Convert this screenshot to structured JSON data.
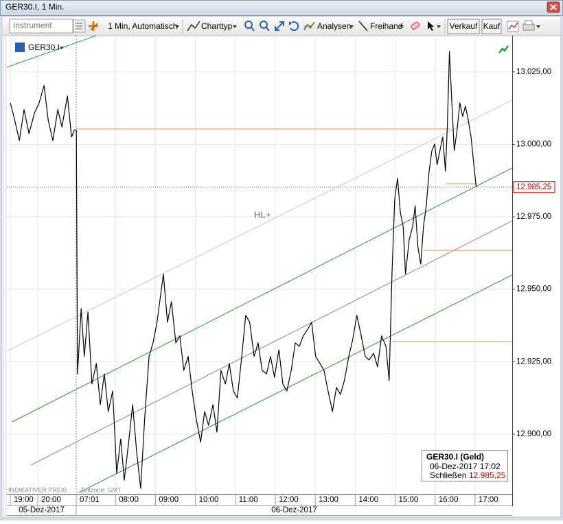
{
  "window": {
    "title": "GER30.I, 1 Min."
  },
  "toolbar": {
    "instrument_placeholder": "Instrument",
    "interval": "1 Min,  Automatisch",
    "chart_type": "Charttyp",
    "analyses": "Analysen",
    "freehand": "Freihand",
    "sell": "Verkauf",
    "buy": "Kauf"
  },
  "info_box": {
    "title": "GER30.I (Geld)",
    "time": "06-Dez-2017 17:02",
    "close_label": "Schließen"
  },
  "chart_data": {
    "type": "line",
    "symbol": "GER30.I",
    "annotation": "HL+",
    "footer_left": "INDIKATIVER PREIS",
    "footer_timezone": "Zeitzone: GMT",
    "date_labels": [
      "05-Dez-2017",
      "06-Dez-2017"
    ],
    "color": "#000000",
    "x": [
      19.0,
      19.13,
      19.33,
      19.5,
      19.68,
      19.88,
      20.05,
      20.23,
      20.38,
      20.55,
      20.73,
      20.88,
      21.08,
      21.23,
      21.33,
      31.02,
      31.05,
      31.14,
      31.22,
      31.31,
      31.41,
      31.52,
      31.62,
      31.72,
      31.82,
      31.93,
      32.03,
      32.13,
      32.22,
      32.32,
      32.43,
      32.53,
      32.63,
      32.73,
      32.84,
      32.94,
      33.04,
      33.2,
      33.3,
      33.4,
      33.51,
      33.61,
      33.71,
      33.82,
      33.92,
      34.02,
      34.13,
      34.23,
      34.33,
      34.44,
      34.54,
      34.64,
      34.75,
      34.85,
      34.95,
      35.05,
      35.16,
      35.26,
      35.36,
      35.47,
      35.57,
      35.67,
      35.78,
      35.88,
      35.98,
      36.09,
      36.19,
      36.29,
      36.4,
      36.5,
      36.6,
      36.7,
      36.81,
      36.91,
      37.01,
      37.12,
      37.22,
      37.32,
      37.43,
      37.53,
      37.63,
      37.73,
      37.84,
      37.94,
      38.04,
      38.15,
      38.25,
      38.35,
      38.46,
      38.56,
      38.66,
      38.77,
      38.85,
      38.92,
      38.99,
      39.06,
      39.13,
      39.2,
      39.26,
      39.35,
      39.44,
      39.5,
      39.57,
      39.64,
      39.71,
      39.78,
      39.85,
      39.92,
      39.99,
      40.05,
      40.12,
      40.19,
      40.26,
      40.31,
      40.36,
      40.42,
      40.48,
      40.55,
      40.62,
      40.69,
      40.76,
      40.83,
      40.9,
      40.97,
      41.03
    ],
    "values": [
      13014.3,
      13009.6,
      13001.3,
      13012,
      13003.7,
      13010.8,
      13014.3,
      13020.3,
      13008.4,
      13001.3,
      13012,
      13006,
      13016.7,
      13002.5,
      13004.9,
      13004.9,
      12920.8,
      12943.3,
      12926.8,
      12942.1,
      12917.3,
      12924.4,
      12910.2,
      12920.8,
      12907.8,
      12914.9,
      12886.5,
      12898.3,
      12884.1,
      12896.0,
      12910.2,
      12893.6,
      12881.3,
      12905.4,
      12926.8,
      12931.5,
      12938.6,
      12955.2,
      12938.6,
      12945.7,
      12931.5,
      12933.9,
      12922.0,
      12926.8,
      12914.9,
      12905.4,
      12897.2,
      12907.8,
      12903.1,
      12910.2,
      12900.7,
      12922.0,
      12917.3,
      12924.4,
      12914.9,
      12912.5,
      12926.8,
      12941.0,
      12938.6,
      12926.8,
      12931.5,
      12922.0,
      12920.8,
      12926.8,
      12919.6,
      12929.1,
      12917.3,
      12914.9,
      12922.0,
      12931.5,
      12930.3,
      12933.9,
      12936.2,
      12938.6,
      12926.8,
      12924.4,
      12922.0,
      12914.9,
      12907.8,
      12916.1,
      12913.7,
      12918.5,
      12926.8,
      12932.7,
      12941.0,
      12933.9,
      12926.8,
      12925.6,
      12927.9,
      12923.2,
      12933.9,
      12930.3,
      12918.5,
      12955.2,
      12981.2,
      12988.3,
      12976.5,
      12971.7,
      12955.2,
      12967.0,
      12971.7,
      12978.8,
      12964.6,
      12958.7,
      12971.7,
      12978.8,
      12990.7,
      12997.8,
      13000.1,
      12993.0,
      12997.8,
      13002.5,
      12990.7,
      13007.2,
      13032.1,
      13014.3,
      12997.8,
      13004.9,
      13014.3,
      13009.6,
      13013.2,
      13008.4,
      13002.5,
      12993.0,
      12985.25
    ],
    "last": {
      "value": 12985.25,
      "label": "12.985,25"
    },
    "xlim": [
      18.875,
      41.93
    ],
    "xticks": [
      {
        "value": 19,
        "label": "19:00"
      },
      {
        "value": 20,
        "label": "20:00"
      },
      {
        "value": 31.0167,
        "label": "07:01"
      },
      {
        "value": 32,
        "label": "08:00"
      },
      {
        "value": 33,
        "label": "09:00"
      },
      {
        "value": 34,
        "label": "10:00"
      },
      {
        "value": 35,
        "label": "11:00"
      },
      {
        "value": 36,
        "label": "12:00"
      },
      {
        "value": 37,
        "label": "13:00"
      },
      {
        "value": 38,
        "label": "14:00"
      },
      {
        "value": 39,
        "label": "15:00"
      },
      {
        "value": 40,
        "label": "16:00"
      },
      {
        "value": 41,
        "label": "17:00"
      }
    ],
    "ylim": [
      12879.4,
      13037.5
    ],
    "yticks": [
      {
        "value": 12900,
        "label": "12.900,00"
      },
      {
        "value": 12925,
        "label": "12.925,00"
      },
      {
        "value": 12950,
        "label": "12.950,00"
      },
      {
        "value": 12975,
        "label": "12.975,00"
      },
      {
        "value": 13000,
        "label": "13.000,00"
      },
      {
        "value": 13025,
        "label": "13.025,00"
      }
    ],
    "grid": true
  }
}
